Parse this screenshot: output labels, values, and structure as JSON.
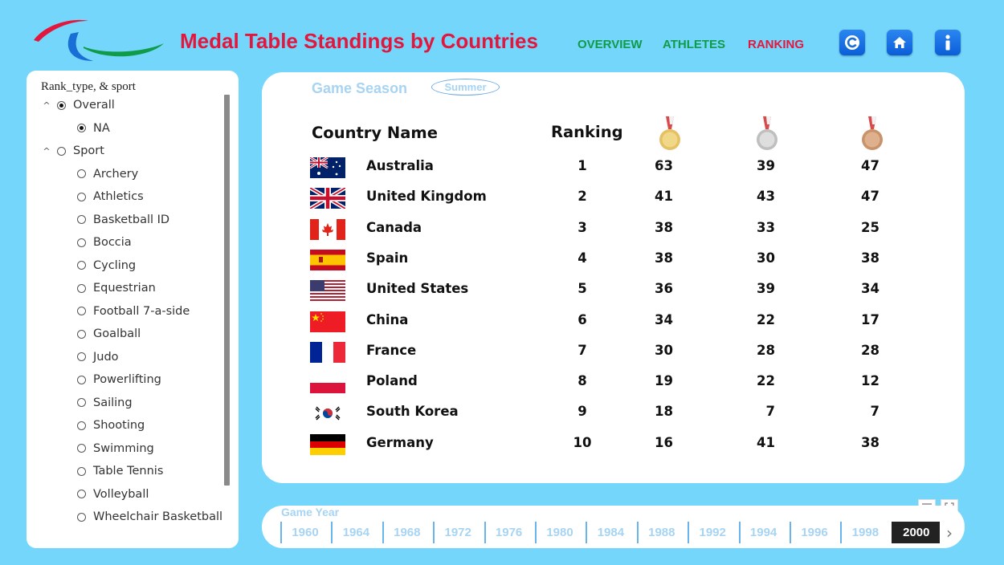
{
  "header": {
    "title": "Medal Table Standings by Countries",
    "nav": {
      "overview": "OVERVIEW",
      "athletes": "ATHLETES",
      "ranking": "RANKING"
    },
    "buttons": {
      "refresh": "refresh-icon",
      "home": "home-icon",
      "info": "info-icon"
    },
    "colors": {
      "title": "#e3173e",
      "nav": "#0f9b4a",
      "active_nav": "#e3173e"
    }
  },
  "slicer": {
    "title": "Rank_type, & sport",
    "groups": [
      {
        "label": "Overall",
        "selected": true,
        "items": [
          {
            "label": "NA",
            "selected": true
          }
        ]
      },
      {
        "label": "Sport",
        "selected": false,
        "items": [
          {
            "label": "Archery"
          },
          {
            "label": "Athletics"
          },
          {
            "label": "Basketball ID"
          },
          {
            "label": "Boccia"
          },
          {
            "label": "Cycling"
          },
          {
            "label": "Equestrian"
          },
          {
            "label": "Football 7-a-side"
          },
          {
            "label": "Goalball"
          },
          {
            "label": "Judo"
          },
          {
            "label": "Powerlifting"
          },
          {
            "label": "Sailing"
          },
          {
            "label": "Shooting"
          },
          {
            "label": "Swimming"
          },
          {
            "label": "Table Tennis"
          },
          {
            "label": "Volleyball"
          },
          {
            "label": "Wheelchair Basketball"
          }
        ]
      }
    ]
  },
  "season": {
    "label": "Game Season",
    "value": "Summer"
  },
  "table": {
    "headers": {
      "country": "Country Name",
      "ranking": "Ranking"
    },
    "medals": [
      "gold-medal-icon",
      "silver-medal-icon",
      "bronze-medal-icon"
    ],
    "rows": [
      {
        "flag": "australia-flag",
        "country": "Australia",
        "rank": "1",
        "gold": "63",
        "silver": "39",
        "bronze": "47"
      },
      {
        "flag": "united-kingdom-flag",
        "country": "United Kingdom",
        "rank": "2",
        "gold": "41",
        "silver": "43",
        "bronze": "47"
      },
      {
        "flag": "canada-flag",
        "country": "Canada",
        "rank": "3",
        "gold": "38",
        "silver": "33",
        "bronze": "25"
      },
      {
        "flag": "spain-flag",
        "country": "Spain",
        "rank": "4",
        "gold": "38",
        "silver": "30",
        "bronze": "38"
      },
      {
        "flag": "united-states-flag",
        "country": "United States",
        "rank": "5",
        "gold": "36",
        "silver": "39",
        "bronze": "34"
      },
      {
        "flag": "china-flag",
        "country": "China",
        "rank": "6",
        "gold": "34",
        "silver": "22",
        "bronze": "17"
      },
      {
        "flag": "france-flag",
        "country": "France",
        "rank": "7",
        "gold": "30",
        "silver": "28",
        "bronze": "28"
      },
      {
        "flag": "poland-flag",
        "country": "Poland",
        "rank": "8",
        "gold": "19",
        "silver": "22",
        "bronze": "12"
      },
      {
        "flag": "south-korea-flag",
        "country": "South Korea",
        "rank": "9",
        "gold": "18",
        "silver": "7",
        "bronze": "7"
      },
      {
        "flag": "germany-flag",
        "country": "Germany",
        "rank": "10",
        "gold": "16",
        "silver": "41",
        "bronze": "38"
      }
    ]
  },
  "years": {
    "label": "Game Year",
    "items": [
      "1960",
      "1964",
      "1968",
      "1972",
      "1976",
      "1980",
      "1984",
      "1988",
      "1992",
      "1994",
      "1996",
      "1998",
      "2000"
    ],
    "selected": "2000"
  }
}
